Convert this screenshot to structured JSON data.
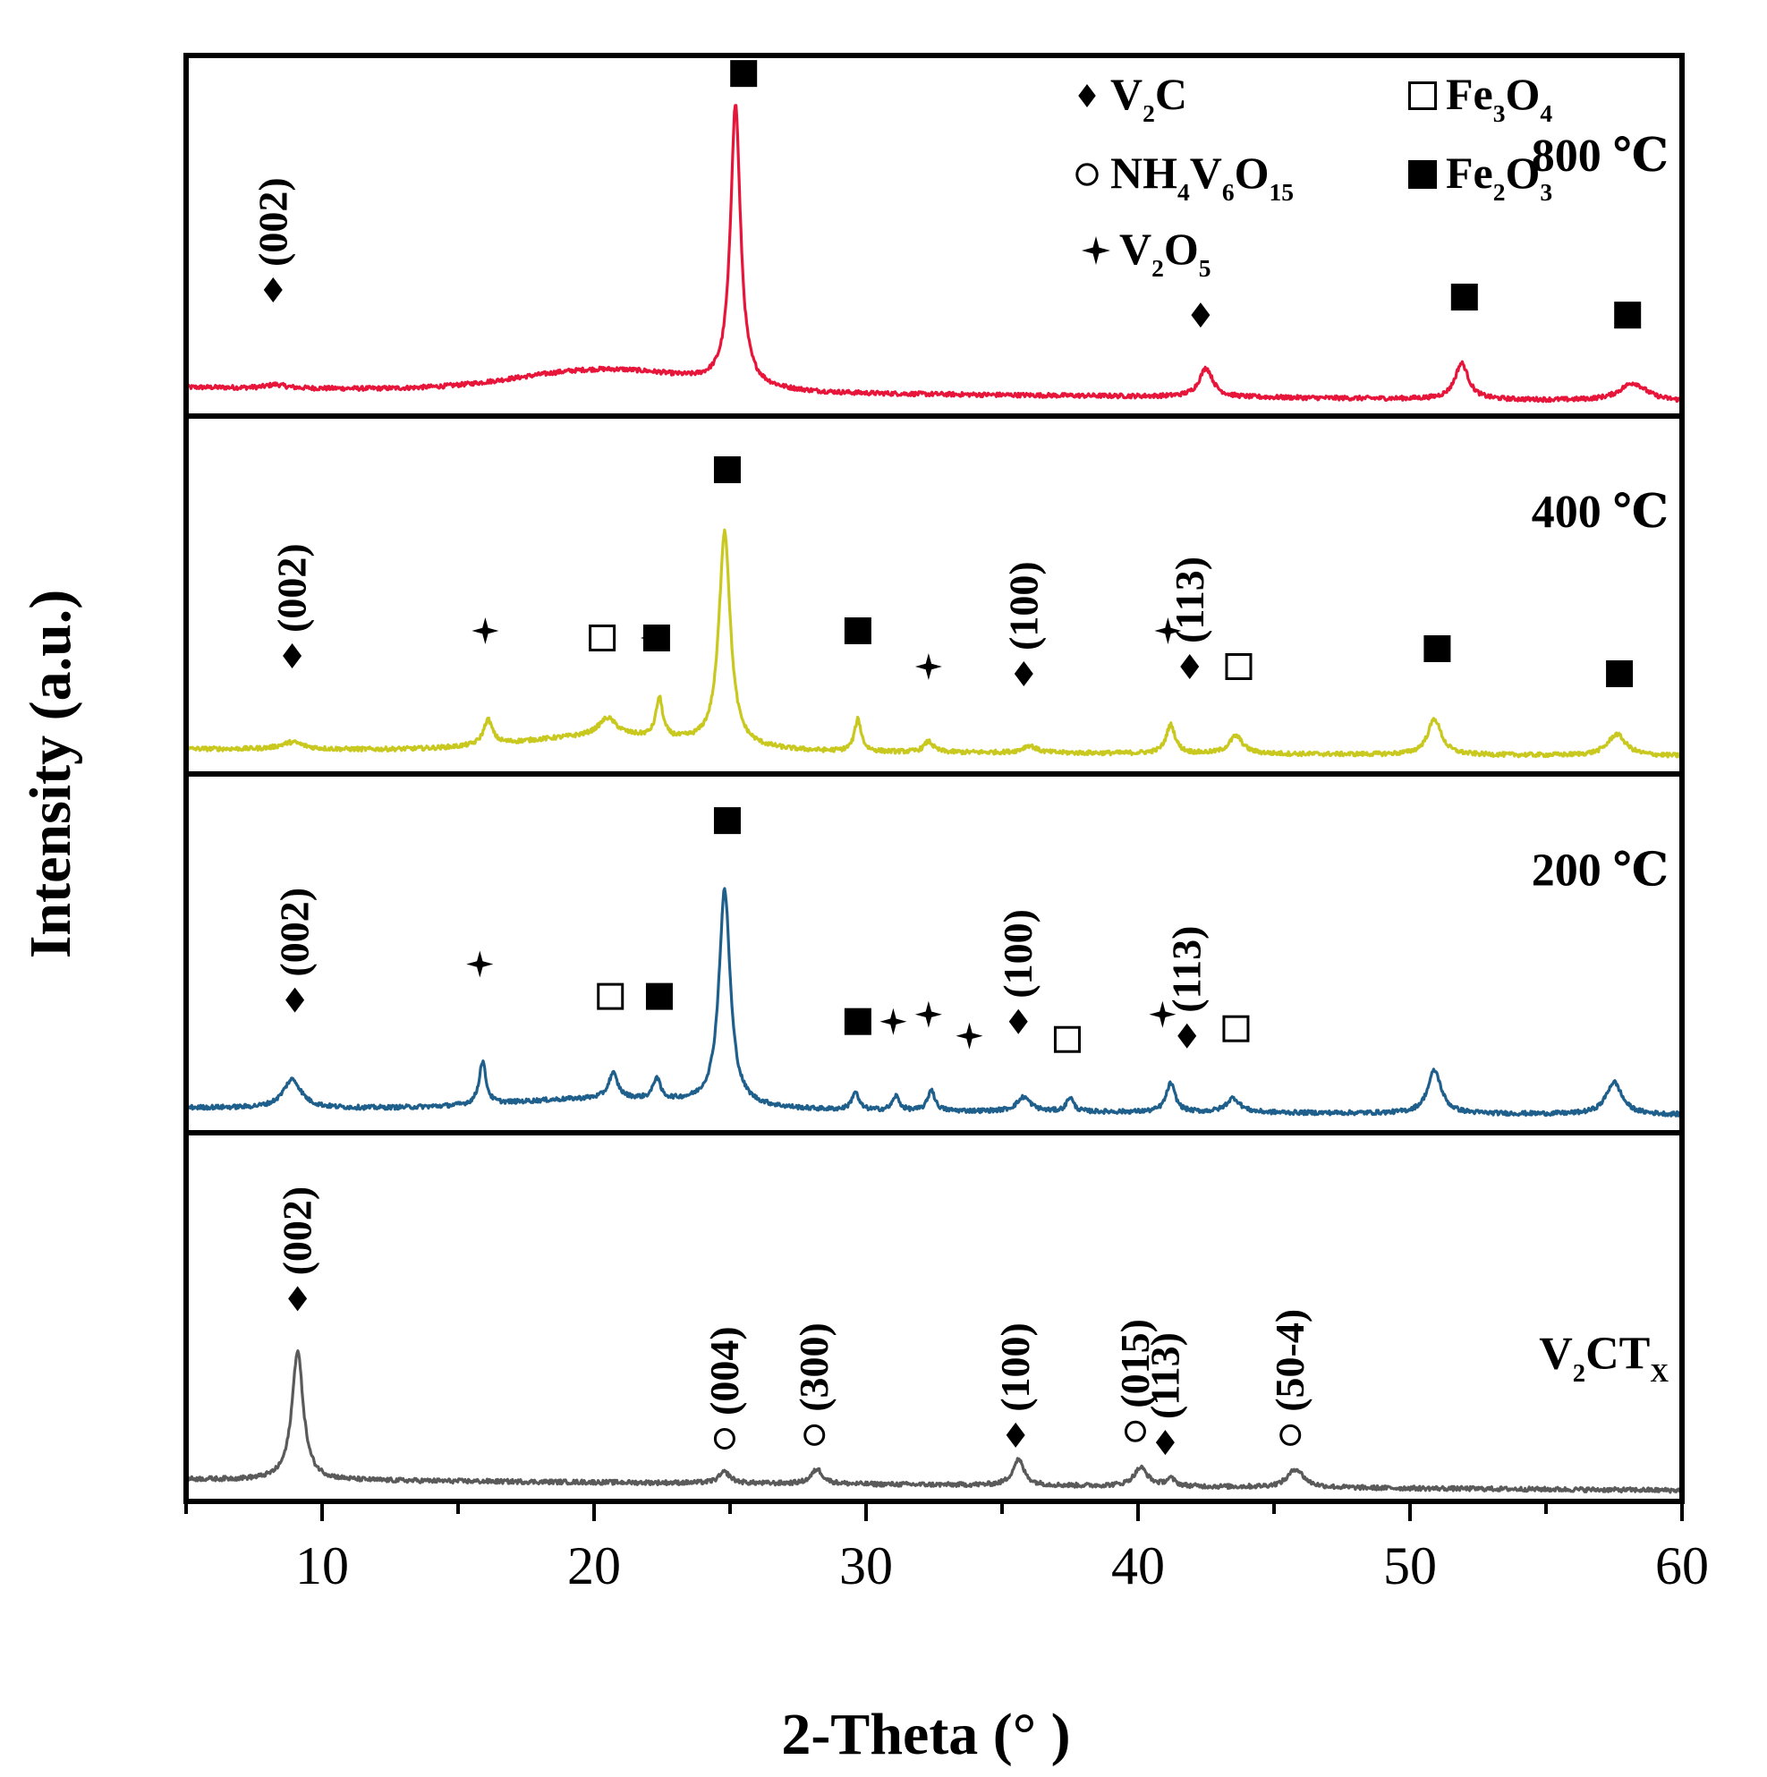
{
  "chart_data": {
    "type": "line",
    "title": "",
    "xlabel": "2-Theta (°  )",
    "ylabel": "Intensity (a.u.)",
    "xlim": [
      5,
      60
    ],
    "xticks": [
      10,
      20,
      30,
      40,
      50,
      60
    ],
    "y_ticks_shown": false,
    "legend": {
      "placement": "top-right",
      "entries": [
        {
          "marker": "diamond",
          "base": "V",
          "sub": "2",
          "rest": "C"
        },
        {
          "marker": "circle-open",
          "base": "NH",
          "sub": "4",
          "rest": "V",
          "sub2": "6",
          "rest2": "O",
          "sub3": "15"
        },
        {
          "marker": "star",
          "base": "V",
          "sub": "2",
          "rest": "O",
          "sub2": "5"
        },
        {
          "marker": "square-open",
          "base": "Fe",
          "sub": "3",
          "rest": "O",
          "sub2": "4"
        },
        {
          "marker": "square-filled",
          "base": "Fe",
          "sub": "2",
          "rest": "O",
          "sub2": "3"
        }
      ]
    },
    "series": [
      {
        "name": "800 ℃",
        "color": "#e8153a",
        "baseline": 0.08,
        "slope": -0.04,
        "hump": {
          "center": 20.5,
          "width": 4.5,
          "height": 0.06
        },
        "peaks": [
          [
            8.3,
            0.01,
            0.4
          ],
          [
            25.2,
            0.78,
            0.22
          ],
          [
            42.5,
            0.08,
            0.3
          ],
          [
            51.9,
            0.1,
            0.3
          ],
          [
            58.2,
            0.05,
            0.6
          ]
        ],
        "annotations": [
          {
            "x": 8.2,
            "y": 0.35,
            "marker": "diamond",
            "label": "(002)"
          },
          {
            "x": 25.5,
            "y": 0.95,
            "marker": "square-filled",
            "label": ""
          },
          {
            "x": 42.3,
            "y": 0.28,
            "marker": "diamond",
            "label": ""
          },
          {
            "x": 52.0,
            "y": 0.33,
            "marker": "square-filled",
            "label": ""
          },
          {
            "x": 58.0,
            "y": 0.28,
            "marker": "square-filled",
            "label": ""
          }
        ]
      },
      {
        "name": "400 ℃",
        "color": "#c8c81f",
        "baseline": 0.07,
        "slope": -0.02,
        "hump": {
          "center": 20.5,
          "width": 4.5,
          "height": 0.04
        },
        "peaks": [
          [
            8.9,
            0.02,
            0.5
          ],
          [
            16.1,
            0.07,
            0.2
          ],
          [
            20.5,
            0.05,
            0.4
          ],
          [
            22.4,
            0.11,
            0.15
          ],
          [
            24.8,
            0.6,
            0.25
          ],
          [
            29.7,
            0.09,
            0.15
          ],
          [
            32.3,
            0.03,
            0.2
          ],
          [
            36.0,
            0.02,
            0.3
          ],
          [
            41.2,
            0.08,
            0.2
          ],
          [
            43.6,
            0.05,
            0.3
          ],
          [
            50.9,
            0.1,
            0.3
          ],
          [
            57.6,
            0.06,
            0.4
          ]
        ],
        "annotations": [
          {
            "x": 8.9,
            "y": 0.33,
            "marker": "diamond",
            "label": "(002)"
          },
          {
            "x": 16.0,
            "y": 0.4,
            "marker": "star",
            "label": ""
          },
          {
            "x": 20.3,
            "y": 0.38,
            "marker": "square-open",
            "label": ""
          },
          {
            "x": 22.2,
            "y": 0.38,
            "marker": "star",
            "label": ""
          },
          {
            "x": 22.3,
            "y": 0.38,
            "marker": "square-filled",
            "label": ""
          },
          {
            "x": 24.9,
            "y": 0.85,
            "marker": "square-filled",
            "label": ""
          },
          {
            "x": 29.7,
            "y": 0.4,
            "marker": "square-filled",
            "label": ""
          },
          {
            "x": 32.3,
            "y": 0.3,
            "marker": "star",
            "label": ""
          },
          {
            "x": 35.8,
            "y": 0.28,
            "marker": "diamond",
            "label": "(100)"
          },
          {
            "x": 41.1,
            "y": 0.4,
            "marker": "star",
            "label": ""
          },
          {
            "x": 41.9,
            "y": 0.3,
            "marker": "diamond",
            "label": "(113)"
          },
          {
            "x": 43.7,
            "y": 0.3,
            "marker": "square-open",
            "label": ""
          },
          {
            "x": 51.0,
            "y": 0.35,
            "marker": "square-filled",
            "label": ""
          },
          {
            "x": 57.7,
            "y": 0.28,
            "marker": "square-filled",
            "label": ""
          }
        ]
      },
      {
        "name": "200 ℃",
        "color": "#1f5f8c",
        "baseline": 0.07,
        "slope": -0.02,
        "hump": {
          "center": 20.5,
          "width": 5.0,
          "height": 0.03
        },
        "peaks": [
          [
            8.9,
            0.08,
            0.4
          ],
          [
            15.9,
            0.12,
            0.15
          ],
          [
            20.7,
            0.07,
            0.2
          ],
          [
            22.3,
            0.06,
            0.15
          ],
          [
            24.8,
            0.6,
            0.25
          ],
          [
            29.6,
            0.05,
            0.15
          ],
          [
            31.1,
            0.04,
            0.15
          ],
          [
            32.4,
            0.06,
            0.15
          ],
          [
            35.8,
            0.04,
            0.3
          ],
          [
            37.5,
            0.04,
            0.15
          ],
          [
            41.2,
            0.08,
            0.2
          ],
          [
            43.5,
            0.04,
            0.3
          ],
          [
            50.9,
            0.12,
            0.3
          ],
          [
            57.5,
            0.09,
            0.35
          ]
        ],
        "annotations": [
          {
            "x": 9.0,
            "y": 0.37,
            "marker": "diamond",
            "label": "(002)"
          },
          {
            "x": 15.8,
            "y": 0.47,
            "marker": "star",
            "label": ""
          },
          {
            "x": 20.6,
            "y": 0.38,
            "marker": "square-open",
            "label": ""
          },
          {
            "x": 22.4,
            "y": 0.38,
            "marker": "square-filled",
            "label": ""
          },
          {
            "x": 24.9,
            "y": 0.87,
            "marker": "square-filled",
            "label": ""
          },
          {
            "x": 29.7,
            "y": 0.31,
            "marker": "square-filled",
            "label": ""
          },
          {
            "x": 31.0,
            "y": 0.31,
            "marker": "star",
            "label": ""
          },
          {
            "x": 32.3,
            "y": 0.33,
            "marker": "star",
            "label": ""
          },
          {
            "x": 33.8,
            "y": 0.27,
            "marker": "star",
            "label": ""
          },
          {
            "x": 35.6,
            "y": 0.31,
            "marker": "diamond",
            "label": "(100)"
          },
          {
            "x": 37.4,
            "y": 0.26,
            "marker": "square-open",
            "label": ""
          },
          {
            "x": 40.9,
            "y": 0.33,
            "marker": "star",
            "label": ""
          },
          {
            "x": 41.8,
            "y": 0.27,
            "marker": "diamond",
            "label": "(113)"
          },
          {
            "x": 43.6,
            "y": 0.29,
            "marker": "square-open",
            "label": ""
          }
        ]
      },
      {
        "name": "V2CTX",
        "name_display": {
          "base": "V",
          "sub": "2",
          "rest": "CT",
          "sub2": "X"
        },
        "color": "#5a5a5a",
        "baseline": 0.06,
        "slope": -0.03,
        "hump": {
          "center": 20.0,
          "width": 5.0,
          "height": 0.0
        },
        "peaks": [
          [
            9.1,
            0.35,
            0.25
          ],
          [
            24.8,
            0.03,
            0.25
          ],
          [
            28.2,
            0.04,
            0.25
          ],
          [
            35.6,
            0.07,
            0.25
          ],
          [
            40.1,
            0.05,
            0.3
          ],
          [
            41.2,
            0.02,
            0.2
          ],
          [
            45.8,
            0.05,
            0.35
          ]
        ],
        "annotations": [
          {
            "x": 9.1,
            "y": 0.55,
            "marker": "diamond",
            "label": "(002)"
          },
          {
            "x": 24.8,
            "y": 0.17,
            "marker": "circle-open",
            "label": "(004)"
          },
          {
            "x": 28.1,
            "y": 0.18,
            "marker": "circle-open",
            "label": "(300)"
          },
          {
            "x": 35.5,
            "y": 0.18,
            "marker": "diamond",
            "label": "(100)"
          },
          {
            "x": 39.9,
            "y": 0.19,
            "marker": "circle-open",
            "label": "(015)"
          },
          {
            "x": 41.0,
            "y": 0.16,
            "marker": "diamond",
            "label": "(113)"
          },
          {
            "x": 45.6,
            "y": 0.18,
            "marker": "circle-open",
            "label": "(50-4)"
          }
        ]
      }
    ]
  }
}
